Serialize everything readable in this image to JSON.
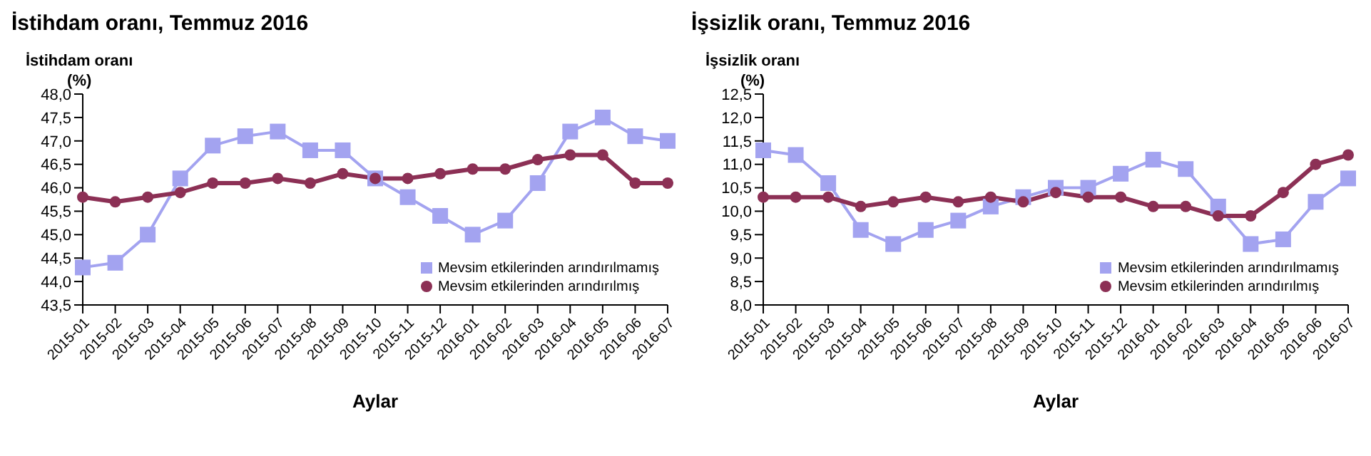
{
  "chart_data": [
    {
      "type": "line",
      "title": "İstihdam oranı, Temmuz 2016",
      "ylabel": "İstihdam oranı\n(%)",
      "xlabel": "Aylar",
      "categories": [
        "2015-01",
        "2015-02",
        "2015-03",
        "2015-04",
        "2015-05",
        "2015-06",
        "2015-07",
        "2015-08",
        "2015-09",
        "2015-10",
        "2015-11",
        "2015-12",
        "2016-01",
        "2016-02",
        "2016-03",
        "2016-04",
        "2016-05",
        "2016-06",
        "2016-07"
      ],
      "series": [
        {
          "name": "Mevsim etkilerinden arındırılmamış",
          "color": "#a3a3f0",
          "marker": "square",
          "values": [
            44.3,
            44.4,
            45.0,
            46.2,
            46.9,
            47.1,
            47.2,
            46.8,
            46.8,
            46.2,
            45.8,
            45.4,
            45.0,
            45.3,
            46.1,
            47.2,
            47.5,
            47.1,
            47.0
          ]
        },
        {
          "name": "Mevsim etkilerinden arındırılmış",
          "color": "#8c3055",
          "marker": "circle",
          "values": [
            45.8,
            45.7,
            45.8,
            45.9,
            46.1,
            46.1,
            46.2,
            46.1,
            46.3,
            46.2,
            46.2,
            46.3,
            46.4,
            46.4,
            46.6,
            46.7,
            46.7,
            46.1,
            46.1
          ]
        }
      ],
      "ylim": [
        43.5,
        48.0
      ],
      "yticks": [
        {
          "value": 43.5,
          "label": "43,5"
        },
        {
          "value": 44.0,
          "label": "44,0"
        },
        {
          "value": 44.5,
          "label": "44,5"
        },
        {
          "value": 45.0,
          "label": "45,0"
        },
        {
          "value": 45.5,
          "label": "45,5"
        },
        {
          "value": 46.0,
          "label": "46,0"
        },
        {
          "value": 46.5,
          "label": "46,5"
        },
        {
          "value": 47.0,
          "label": "47,0"
        },
        {
          "value": 47.5,
          "label": "47,5"
        },
        {
          "value": 48.0,
          "label": "48,0"
        }
      ],
      "grid": false,
      "legend": "bottom right"
    },
    {
      "type": "line",
      "title": "İşsizlik oranı, Temmuz 2016",
      "ylabel": "İşsizlik oranı\n(%)",
      "xlabel": "Aylar",
      "categories": [
        "2015-01",
        "2015-02",
        "2015-03",
        "2015-04",
        "2015-05",
        "2015-06",
        "2015-07",
        "2015-08",
        "2015-09",
        "2015-10",
        "2015-11",
        "2015-12",
        "2016-01",
        "2016-02",
        "2016-03",
        "2016-04",
        "2016-05",
        "2016-06",
        "2016-07"
      ],
      "series": [
        {
          "name": "Mevsim etkilerinden arındırılmamış",
          "color": "#a3a3f0",
          "marker": "square",
          "values": [
            11.3,
            11.2,
            10.6,
            9.6,
            9.3,
            9.6,
            9.8,
            10.1,
            10.3,
            10.5,
            10.5,
            10.8,
            11.1,
            10.9,
            10.1,
            9.3,
            9.4,
            10.2,
            10.7
          ]
        },
        {
          "name": "Mevsim etkilerinden arındırılmış",
          "color": "#8c3055",
          "marker": "circle",
          "values": [
            10.3,
            10.3,
            10.3,
            10.1,
            10.2,
            10.3,
            10.2,
            10.3,
            10.2,
            10.4,
            10.3,
            10.3,
            10.1,
            10.1,
            9.9,
            9.9,
            10.4,
            11.0,
            11.2
          ]
        }
      ],
      "ylim": [
        8.0,
        12.5
      ],
      "yticks": [
        {
          "value": 8.0,
          "label": "8,0"
        },
        {
          "value": 8.5,
          "label": "8,5"
        },
        {
          "value": 9.0,
          "label": "9,0"
        },
        {
          "value": 9.5,
          "label": "9,5"
        },
        {
          "value": 10.0,
          "label": "10,0"
        },
        {
          "value": 10.5,
          "label": "10,5"
        },
        {
          "value": 11.0,
          "label": "11,0"
        },
        {
          "value": 11.5,
          "label": "11,5"
        },
        {
          "value": 12.0,
          "label": "12,0"
        },
        {
          "value": 12.5,
          "label": "12,5"
        }
      ],
      "grid": false,
      "legend": "bottom right"
    }
  ]
}
